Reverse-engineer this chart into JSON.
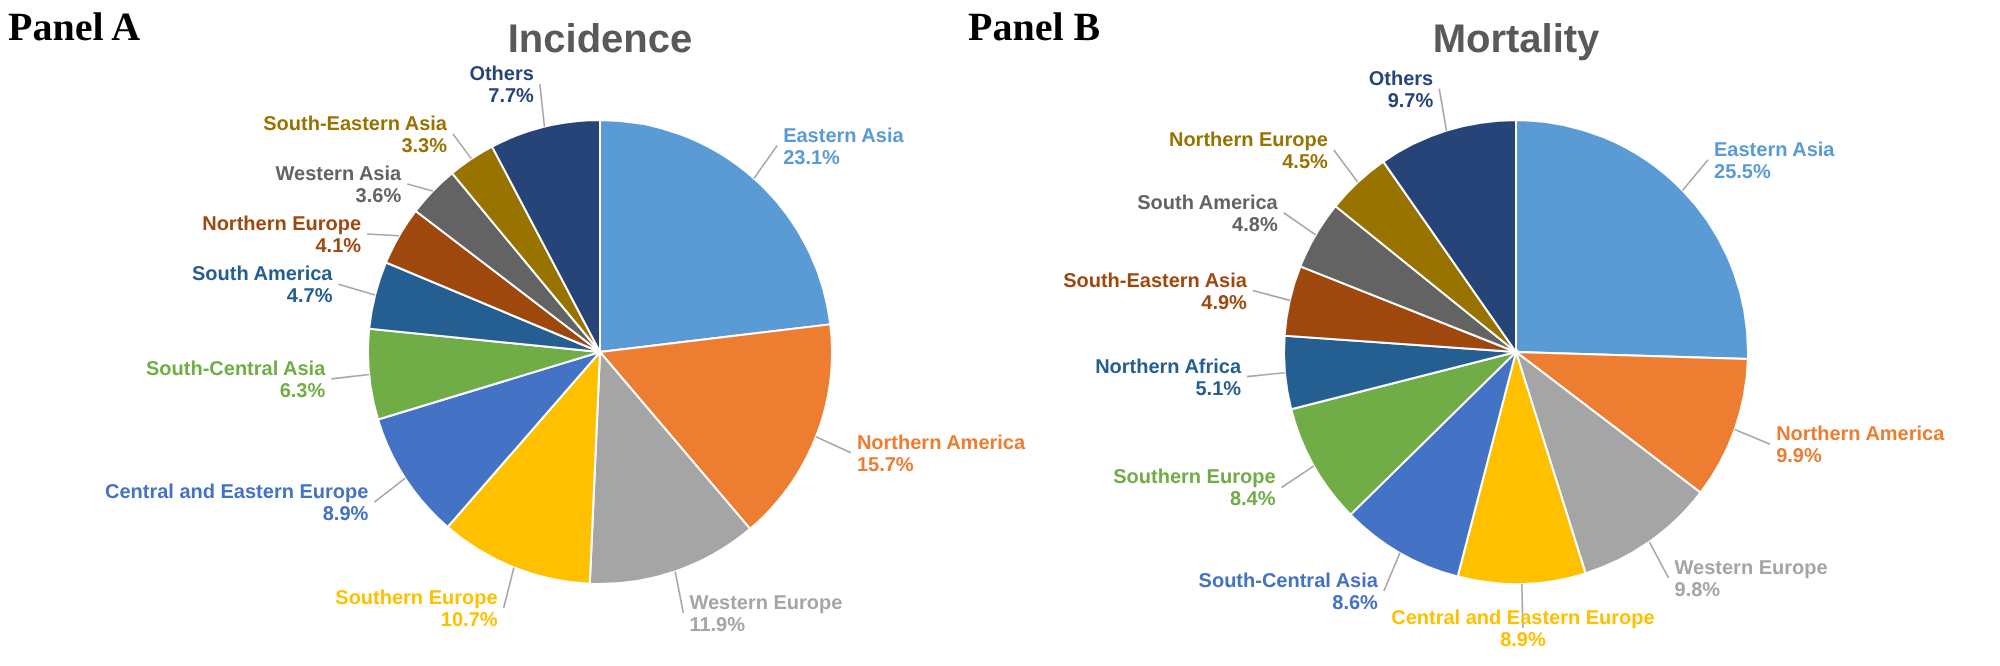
{
  "chart_data": [
    {
      "type": "pie",
      "title": "Incidence",
      "annotations": [
        "Panel A"
      ],
      "categories": [
        "Eastern Asia",
        "Northern America",
        "Western Europe",
        "Southern Europe",
        "Central and Eastern Europe",
        "South-Central Asia",
        "South America",
        "Northern Europe",
        "Western Asia",
        "South-Eastern Asia",
        "Others"
      ],
      "values": [
        23.1,
        15.7,
        11.9,
        10.7,
        8.9,
        6.3,
        4.7,
        4.1,
        3.6,
        3.3,
        7.7
      ],
      "value_labels": [
        "23.1%",
        "15.7%",
        "11.9%",
        "10.7%",
        "8.9%",
        "6.3%",
        "4.7%",
        "4.1%",
        "3.6%",
        "3.3%",
        "7.7%"
      ],
      "colors": [
        "#5b9bd5",
        "#ed7d31",
        "#a5a5a5",
        "#ffc000",
        "#4472c4",
        "#70ad47",
        "#255e91",
        "#9e480e",
        "#636363",
        "#997300",
        "#264478"
      ]
    },
    {
      "type": "pie",
      "title": "Mortality",
      "annotations": [
        "Panel B"
      ],
      "categories": [
        "Eastern Asia",
        "Northern America",
        "Western Europe",
        "Central and Eastern Europe",
        "South-Central Asia",
        "Southern Europe",
        "Northern Africa",
        "South-Eastern Asia",
        "South America",
        "Northern Europe",
        "Others"
      ],
      "values": [
        25.5,
        9.9,
        9.8,
        8.9,
        8.6,
        8.4,
        5.1,
        4.9,
        4.8,
        4.5,
        9.7
      ],
      "value_labels": [
        "25.5%",
        "9.9%",
        "9.8%",
        "8.9%",
        "8.6%",
        "8.4%",
        "5.1%",
        "4.9%",
        "4.8%",
        "4.5%",
        "9.7%"
      ],
      "colors": [
        "#5b9bd5",
        "#ed7d31",
        "#a5a5a5",
        "#ffc000",
        "#4472c4",
        "#70ad47",
        "#255e91",
        "#9e480e",
        "#636363",
        "#997300",
        "#264478"
      ]
    }
  ]
}
